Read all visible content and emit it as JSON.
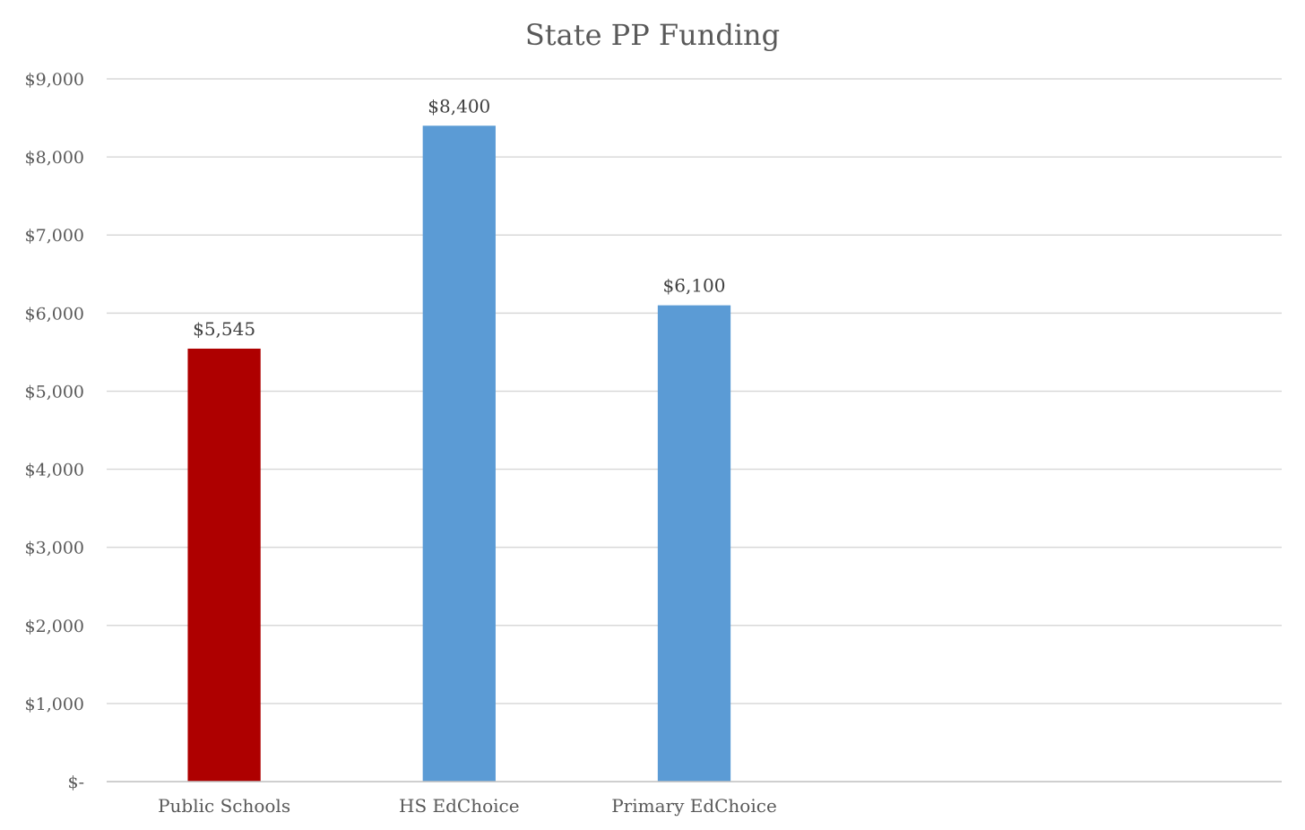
{
  "chart_data": {
    "type": "bar",
    "title": "State PP Funding",
    "xlabel": "",
    "ylabel": "",
    "categories": [
      "Public Schools",
      "HS EdChoice",
      "Primary EdChoice",
      "",
      ""
    ],
    "values": [
      5545,
      8400,
      6100,
      null,
      null
    ],
    "data_labels": [
      "$5,545",
      "$8,400",
      "$6,100",
      "",
      ""
    ],
    "bar_colors": [
      "#ae0000",
      "#5b9bd5",
      "#5b9bd5",
      "#5b9bd5",
      "#5b9bd5"
    ],
    "ylim": [
      0,
      9000
    ],
    "y_ticks": [
      0,
      1000,
      2000,
      3000,
      4000,
      5000,
      6000,
      7000,
      8000,
      9000
    ],
    "y_tick_labels": [
      "$-",
      "$1,000",
      "$2,000",
      "$3,000",
      "$4,000",
      "$5,000",
      "$6,000",
      "$7,000",
      "$8,000",
      "$9,000"
    ],
    "grid": true,
    "legend": "none"
  }
}
